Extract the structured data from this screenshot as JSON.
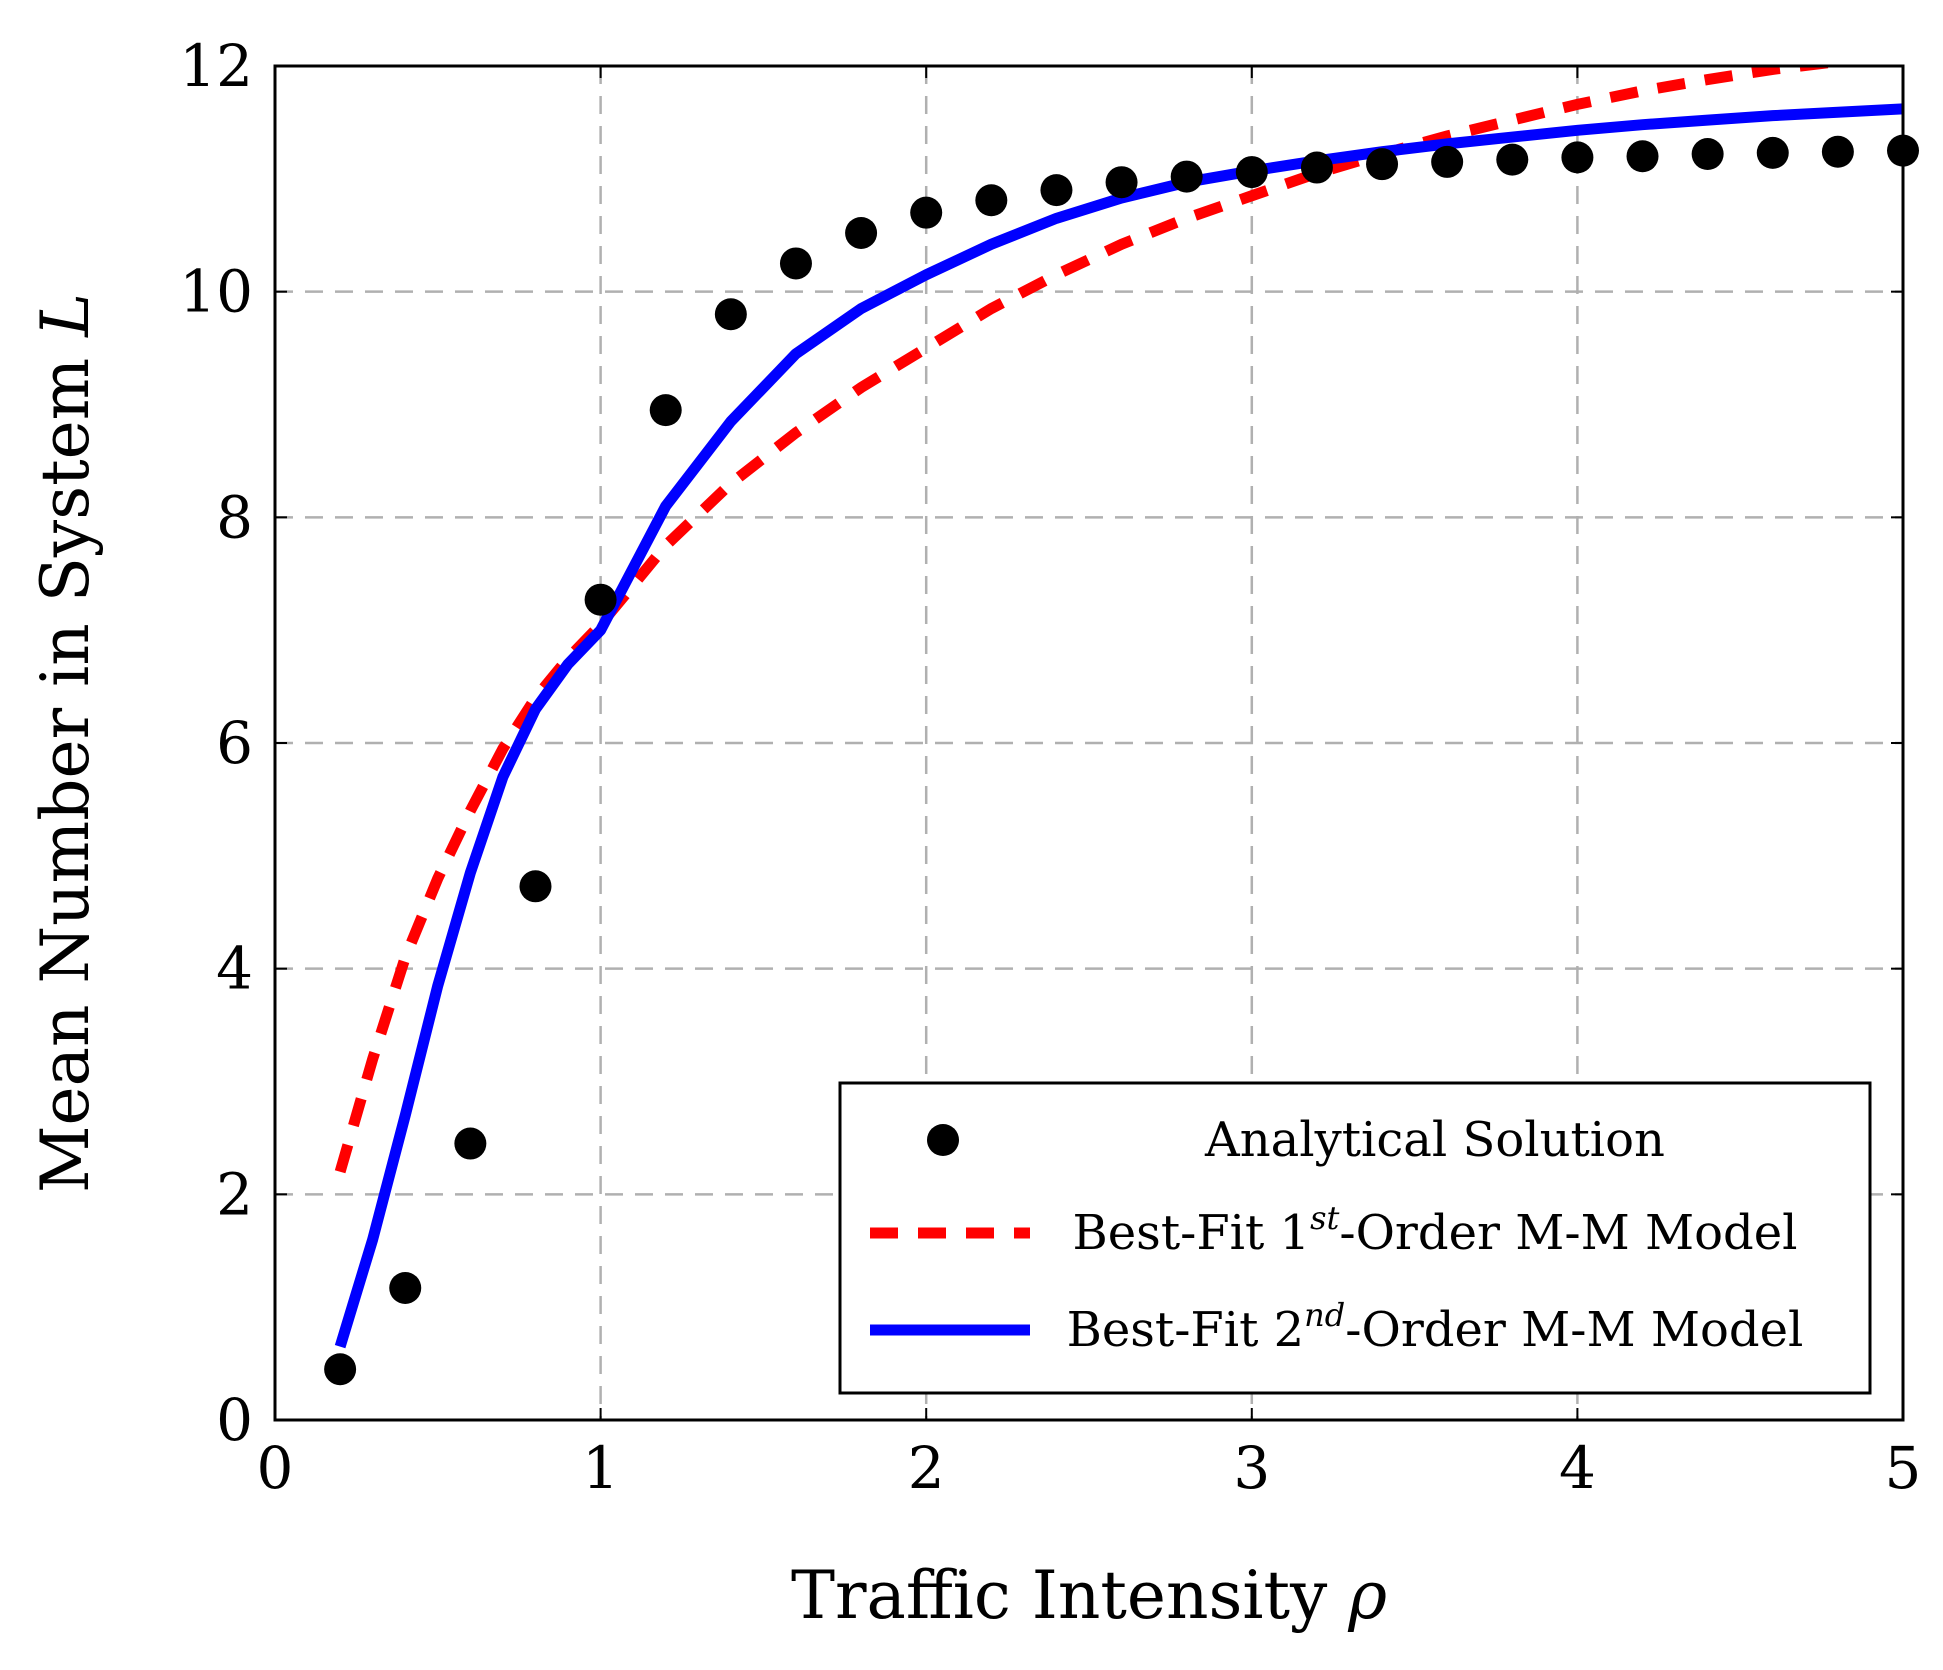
{
  "chart_data": {
    "type": "line",
    "xlabel": "Traffic Intensity",
    "xlabel_symbol": "ρ",
    "ylabel": "Mean Number in System",
    "ylabel_symbol": "L",
    "xlim": [
      0,
      5
    ],
    "ylim": [
      0,
      12
    ],
    "xticks": [
      "0",
      "1",
      "2",
      "3",
      "4",
      "5"
    ],
    "yticks": [
      "0",
      "2",
      "4",
      "6",
      "8",
      "10",
      "12"
    ],
    "grid": true,
    "legend_position": "bottom-right",
    "colors": {
      "analytical": "#000000",
      "first_order": "#ff0000",
      "second_order": "#0000ff",
      "grid": "#b0b0b0"
    },
    "series": [
      {
        "name": "Analytical Solution",
        "style": "markers",
        "x": [
          0.2,
          0.4,
          0.6,
          0.8,
          1.0,
          1.2,
          1.4,
          1.6,
          1.8,
          2.0,
          2.2,
          2.4,
          2.6,
          2.8,
          3.0,
          3.2,
          3.4,
          3.6,
          3.8,
          4.0,
          4.2,
          4.4,
          4.6,
          4.8,
          5.0
        ],
        "y": [
          0.45,
          1.17,
          2.45,
          4.73,
          7.27,
          8.95,
          9.8,
          10.25,
          10.52,
          10.7,
          10.81,
          10.9,
          10.97,
          11.02,
          11.06,
          11.1,
          11.13,
          11.15,
          11.17,
          11.19,
          11.2,
          11.22,
          11.23,
          11.24,
          11.25
        ]
      },
      {
        "name": "Best-Fit 1st-Order M-M Model",
        "label_prefix": "Best-Fit 1",
        "label_sup": "st",
        "label_suffix": "-Order M-M Model",
        "style": "dashed",
        "x": [
          0.2,
          0.3,
          0.4,
          0.5,
          0.6,
          0.7,
          0.8,
          0.9,
          1.0,
          1.2,
          1.4,
          1.6,
          1.8,
          2.0,
          2.2,
          2.4,
          2.6,
          2.8,
          3.0,
          3.2,
          3.4,
          3.6,
          3.8,
          4.0,
          4.2,
          4.4,
          4.6,
          4.8
        ],
        "y": [
          2.2,
          3.2,
          4.1,
          4.8,
          5.4,
          5.95,
          6.4,
          6.75,
          7.05,
          7.75,
          8.3,
          8.75,
          9.15,
          9.5,
          9.85,
          10.15,
          10.42,
          10.65,
          10.85,
          11.05,
          11.22,
          11.38,
          11.52,
          11.66,
          11.78,
          11.88,
          11.97,
          12.04
        ]
      },
      {
        "name": "Best-Fit 2nd-Order M-M Model",
        "label_prefix": "Best-Fit 2",
        "label_sup": "nd",
        "label_suffix": "-Order M-M Model",
        "style": "solid",
        "x": [
          0.2,
          0.3,
          0.4,
          0.5,
          0.6,
          0.7,
          0.8,
          0.9,
          1.0,
          1.1,
          1.2,
          1.4,
          1.6,
          1.8,
          2.0,
          2.2,
          2.4,
          2.6,
          2.8,
          3.0,
          3.2,
          3.4,
          3.6,
          3.8,
          4.0,
          4.2,
          4.4,
          4.6,
          4.8,
          5.0
        ],
        "y": [
          0.65,
          1.6,
          2.7,
          3.85,
          4.85,
          5.7,
          6.3,
          6.7,
          7.0,
          7.55,
          8.1,
          8.85,
          9.45,
          9.85,
          10.15,
          10.42,
          10.65,
          10.83,
          10.97,
          11.07,
          11.16,
          11.24,
          11.31,
          11.37,
          11.43,
          11.48,
          11.52,
          11.56,
          11.59,
          11.62
        ]
      }
    ]
  }
}
